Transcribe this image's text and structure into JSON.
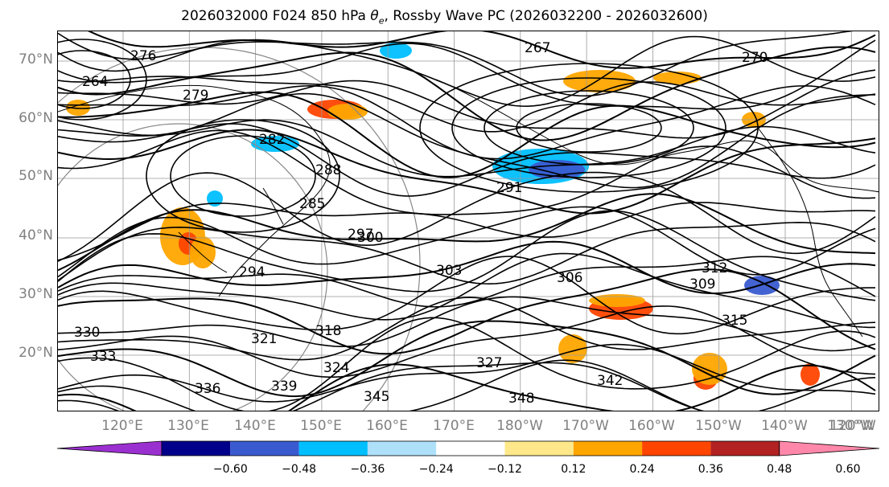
{
  "title": {
    "prefix": "2026032000 F024 850 hPa ",
    "theta_symbol": "θ",
    "theta_sub": "e",
    "suffix": ", Rossby Wave PC (2026032200 - 2026032600)"
  },
  "lat_labels": [
    "70°N",
    "60°N",
    "50°N",
    "40°N",
    "30°N",
    "20°N"
  ],
  "lon_labels": [
    "120°E",
    "130°E",
    "140°E",
    "150°E",
    "160°E",
    "170°E",
    "180°W",
    "170°W",
    "160°W",
    "150°W",
    "140°W",
    "130°W",
    "120°W"
  ],
  "contour_labels": [
    "276",
    "264",
    "267",
    "270",
    "279",
    "282",
    "285",
    "288",
    "291",
    "294",
    "297",
    "300",
    "303",
    "306",
    "309",
    "312",
    "315",
    "318",
    "321",
    "324",
    "327",
    "330",
    "333",
    "336",
    "339",
    "342",
    "345",
    "348"
  ],
  "colorbar": {
    "colors": [
      "#9b30d0",
      "#00008b",
      "#3a5bd0",
      "#00bfff",
      "#aee0fa",
      "#ffffff",
      "#ffe88a",
      "#ffa500",
      "#ff4500",
      "#b22222",
      "#ff88aa"
    ],
    "ticks": [
      "−0.60",
      "−0.48",
      "−0.36",
      "−0.24",
      "−0.12",
      "0.12",
      "0.24",
      "0.36",
      "0.48",
      "0.60"
    ]
  }
}
